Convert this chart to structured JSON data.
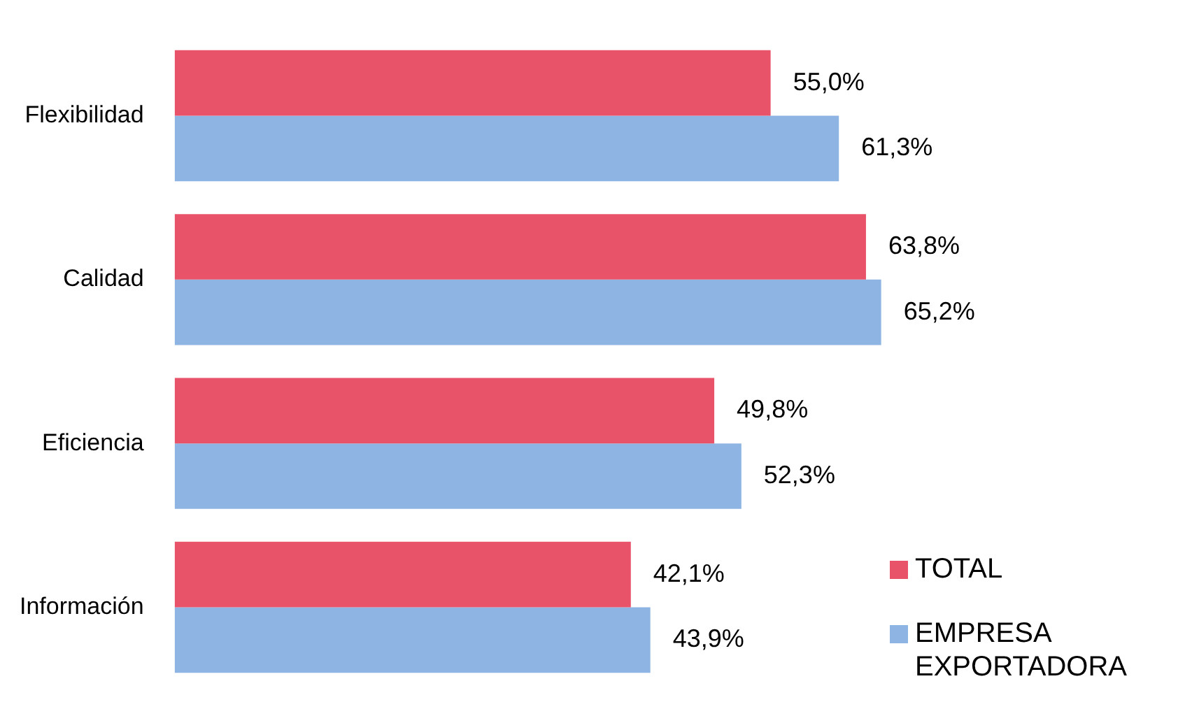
{
  "chart_data": {
    "type": "bar",
    "orientation": "horizontal",
    "categories": [
      "Flexibilidad",
      "Calidad",
      "Eficiencia",
      "Información"
    ],
    "series": [
      {
        "name": "TOTAL",
        "color": "#e8536a",
        "values": [
          55.0,
          63.8,
          49.8,
          42.1
        ],
        "value_labels": [
          "55,0%",
          "63,8%",
          "49,8%",
          "42,1%"
        ]
      },
      {
        "name": "EMPRESA EXPORTADORA",
        "color": "#8eb4e3",
        "values": [
          61.3,
          65.2,
          52.3,
          43.9
        ],
        "value_labels": [
          "61,3%",
          "65,2%",
          "52,3%",
          "43,9%"
        ]
      }
    ],
    "legend": "bottom right",
    "tick_labels": "y"
  }
}
